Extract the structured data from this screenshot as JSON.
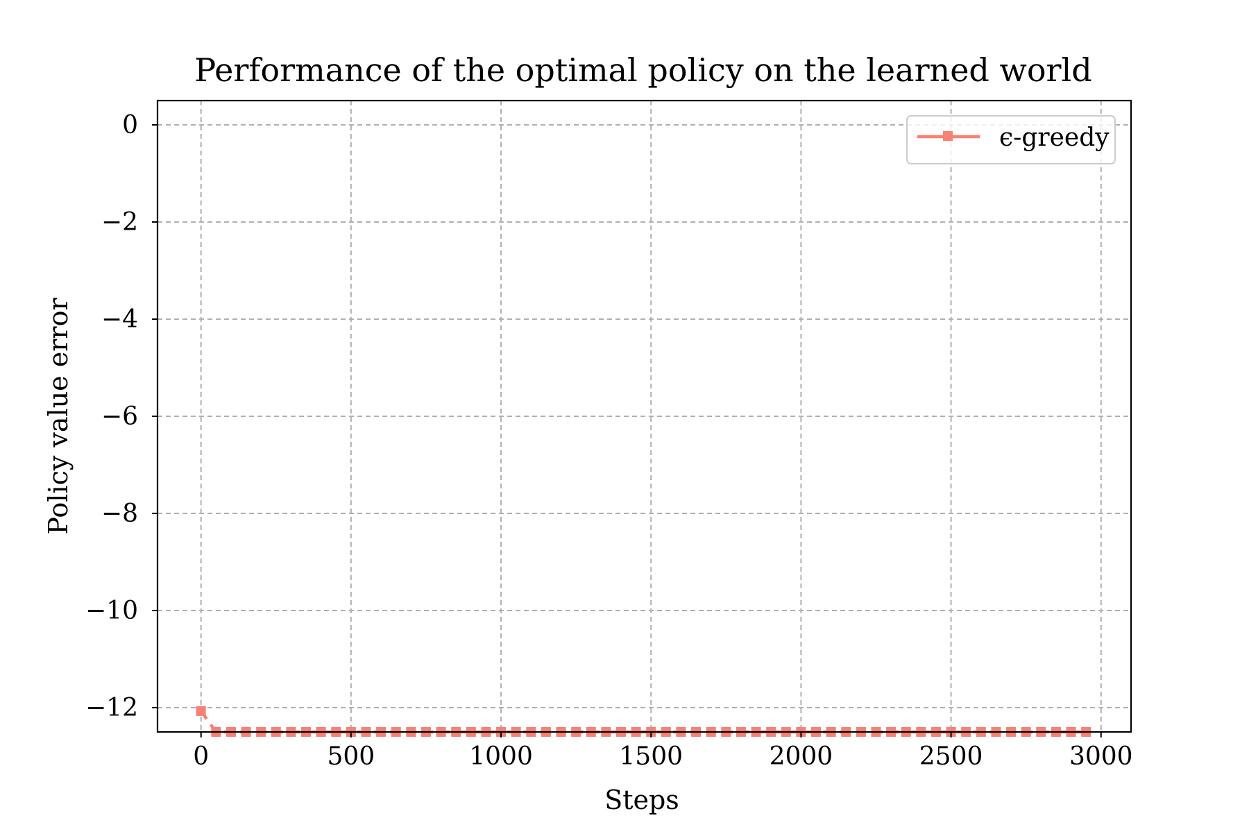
{
  "chart_data": {
    "type": "line",
    "title": "Performance of the optimal policy on the learned world",
    "xlabel": "Steps",
    "ylabel": "Policy value error",
    "xlim": [
      -145,
      3100
    ],
    "ylim": [
      -12.5,
      0.5
    ],
    "xticks": [
      0,
      500,
      1000,
      1500,
      2000,
      2500,
      3000
    ],
    "xtick_labels": [
      "0",
      "500",
      "1000",
      "1500",
      "2000",
      "2500",
      "3000"
    ],
    "yticks": [
      0,
      -2,
      -4,
      -6,
      -8,
      -10,
      -12
    ],
    "ytick_labels": [
      "0",
      "−2",
      "−4",
      "−6",
      "−8",
      "−10",
      "−12"
    ],
    "grid": true,
    "legend_position": "top-right",
    "series": [
      {
        "name": "ϵ-greedy",
        "color": "#fa8072",
        "marker": "square",
        "x": [
          0,
          50,
          100,
          150,
          200,
          250,
          300,
          350,
          400,
          450,
          500,
          550,
          600,
          650,
          700,
          750,
          800,
          850,
          900,
          950,
          1000,
          1050,
          1100,
          1150,
          1200,
          1250,
          1300,
          1350,
          1400,
          1450,
          1500,
          1550,
          1600,
          1650,
          1700,
          1750,
          1800,
          1850,
          1900,
          1950,
          2000,
          2050,
          2100,
          2150,
          2200,
          2250,
          2300,
          2350,
          2400,
          2450,
          2500,
          2550,
          2600,
          2650,
          2700,
          2750,
          2800,
          2850,
          2900,
          2950
        ],
        "y": [
          -12.07,
          -12.5,
          -12.5,
          -12.5,
          -12.5,
          -12.5,
          -12.5,
          -12.5,
          -12.5,
          -12.5,
          -12.5,
          -12.5,
          -12.5,
          -12.5,
          -12.5,
          -12.5,
          -12.5,
          -12.5,
          -12.5,
          -12.5,
          -12.5,
          -12.5,
          -12.5,
          -12.5,
          -12.5,
          -12.5,
          -12.5,
          -12.5,
          -12.5,
          -12.5,
          -12.5,
          -12.5,
          -12.5,
          -12.5,
          -12.5,
          -12.5,
          -12.5,
          -12.5,
          -12.5,
          -12.5,
          -12.5,
          -12.5,
          -12.5,
          -12.5,
          -12.5,
          -12.5,
          -12.5,
          -12.5,
          -12.5,
          -12.5,
          -12.5,
          -12.5,
          -12.5,
          -12.5,
          -12.5,
          -12.5,
          -12.5,
          -12.5,
          -12.5,
          -12.5
        ]
      }
    ]
  }
}
